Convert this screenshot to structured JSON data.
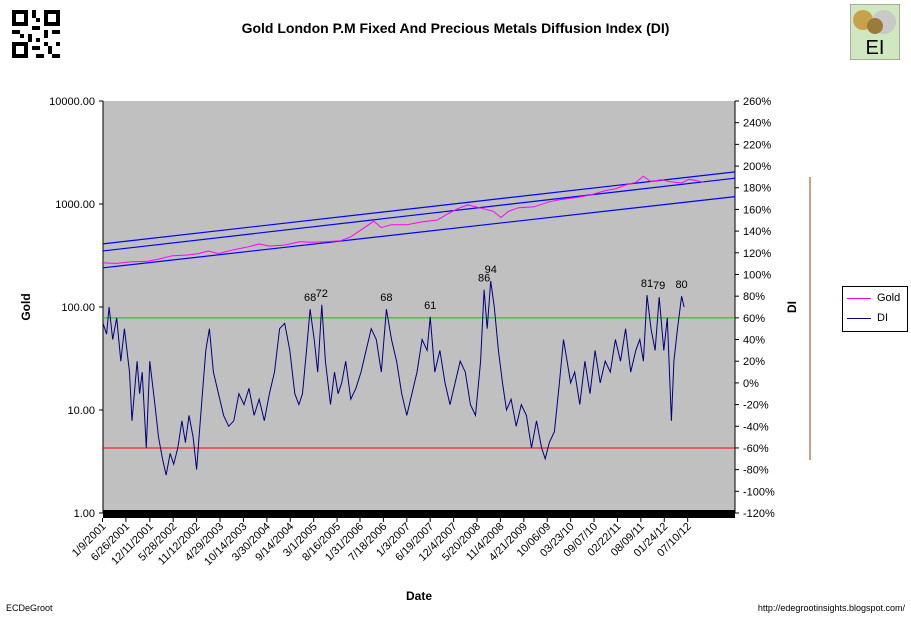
{
  "chart_data": {
    "type": "line",
    "title": "Gold London P.M Fixed And Precious Metals Diffusion Index (DI)",
    "xlabel": "Date",
    "ylabel_left": "Gold",
    "ylabel_right": "DI",
    "y_left_scale": "log",
    "y_left_range": [
      1,
      10000
    ],
    "y_left_ticks": [
      "10000.00",
      "1000.00",
      "100.00",
      "10.00",
      "1.00"
    ],
    "y_right_range": [
      -120,
      260
    ],
    "y_right_ticks": [
      "260%",
      "240%",
      "220%",
      "200%",
      "180%",
      "160%",
      "140%",
      "120%",
      "100%",
      "80%",
      "60%",
      "40%",
      "20%",
      "0%",
      "-20%",
      "-40%",
      "-60%",
      "-80%",
      "-100%",
      "-120%"
    ],
    "x_range": [
      2001.03,
      2013.45
    ],
    "x_tick_labels": [
      {
        "label": "1/9/2001",
        "t": 2001.02
      },
      {
        "label": "6/26/2001",
        "t": 2001.48
      },
      {
        "label": "12/11/2001",
        "t": 2001.95
      },
      {
        "label": "5/28/2002",
        "t": 2002.41
      },
      {
        "label": "11/12/2002",
        "t": 2002.87
      },
      {
        "label": "4/29/2003",
        "t": 2003.33
      },
      {
        "label": "10/14/2003",
        "t": 2003.79
      },
      {
        "label": "3/30/2004",
        "t": 2004.25
      },
      {
        "label": "9/14/2004",
        "t": 2004.71
      },
      {
        "label": "3/1/2005",
        "t": 2005.17
      },
      {
        "label": "8/16/2005",
        "t": 2005.63
      },
      {
        "label": "1/31/2006",
        "t": 2006.08
      },
      {
        "label": "7/18/2006",
        "t": 2006.54
      },
      {
        "label": "1/3/2007",
        "t": 2007.0
      },
      {
        "label": "6/19/2007",
        "t": 2007.46
      },
      {
        "label": "12/4/2007",
        "t": 2007.92
      },
      {
        "label": "5/20/2008",
        "t": 2008.38
      },
      {
        "label": "11/4/2008",
        "t": 2008.84
      },
      {
        "label": "4/21/2009",
        "t": 2009.3
      },
      {
        "label": "10/06/09",
        "t": 2009.76
      },
      {
        "label": "03/23/10",
        "t": 2010.22
      },
      {
        "label": "09/07/10",
        "t": 2010.68
      },
      {
        "label": "02/22/11",
        "t": 2011.14
      },
      {
        "label": "08/09/11",
        "t": 2011.6
      },
      {
        "label": "01/24/12",
        "t": 2012.06
      },
      {
        "label": "07/10/12",
        "t": 2012.52
      }
    ],
    "series": [
      {
        "name": "Gold",
        "axis": "left",
        "color": "#ff00ff",
        "points": [
          [
            2001.03,
            268
          ],
          [
            2001.3,
            265
          ],
          [
            2001.6,
            275
          ],
          [
            2001.9,
            278
          ],
          [
            2002.1,
            290
          ],
          [
            2002.4,
            315
          ],
          [
            2002.7,
            320
          ],
          [
            2002.9,
            330
          ],
          [
            2003.1,
            350
          ],
          [
            2003.3,
            330
          ],
          [
            2003.6,
            360
          ],
          [
            2003.9,
            385
          ],
          [
            2004.1,
            410
          ],
          [
            2004.3,
            390
          ],
          [
            2004.6,
            400
          ],
          [
            2004.9,
            430
          ],
          [
            2005.1,
            425
          ],
          [
            2005.4,
            430
          ],
          [
            2005.7,
            440
          ],
          [
            2005.9,
            480
          ],
          [
            2006.1,
            560
          ],
          [
            2006.35,
            680
          ],
          [
            2006.5,
            590
          ],
          [
            2006.7,
            630
          ],
          [
            2007.0,
            630
          ],
          [
            2007.3,
            670
          ],
          [
            2007.6,
            700
          ],
          [
            2007.8,
            800
          ],
          [
            2008.0,
            900
          ],
          [
            2008.2,
            980
          ],
          [
            2008.5,
            900
          ],
          [
            2008.7,
            850
          ],
          [
            2008.85,
            740
          ],
          [
            2009.0,
            850
          ],
          [
            2009.2,
            920
          ],
          [
            2009.5,
            940
          ],
          [
            2009.8,
            1050
          ],
          [
            2010.0,
            1100
          ],
          [
            2010.3,
            1150
          ],
          [
            2010.6,
            1220
          ],
          [
            2010.9,
            1350
          ],
          [
            2011.1,
            1400
          ],
          [
            2011.3,
            1530
          ],
          [
            2011.5,
            1620
          ],
          [
            2011.65,
            1860
          ],
          [
            2011.8,
            1650
          ],
          [
            2012.0,
            1720
          ],
          [
            2012.2,
            1640
          ],
          [
            2012.4,
            1600
          ],
          [
            2012.55,
            1740
          ],
          [
            2012.7,
            1680
          ],
          [
            2012.85,
            1620
          ]
        ]
      },
      {
        "name": "DI",
        "axis": "right",
        "color": "#000080",
        "points": [
          [
            2001.03,
            55
          ],
          [
            2001.1,
            45
          ],
          [
            2001.15,
            70
          ],
          [
            2001.22,
            40
          ],
          [
            2001.3,
            60
          ],
          [
            2001.38,
            20
          ],
          [
            2001.45,
            50
          ],
          [
            2001.55,
            10
          ],
          [
            2001.6,
            -35
          ],
          [
            2001.7,
            20
          ],
          [
            2001.75,
            -10
          ],
          [
            2001.8,
            10
          ],
          [
            2001.88,
            -60
          ],
          [
            2001.95,
            20
          ],
          [
            2002.05,
            -20
          ],
          [
            2002.12,
            -50
          ],
          [
            2002.2,
            -70
          ],
          [
            2002.27,
            -85
          ],
          [
            2002.35,
            -65
          ],
          [
            2002.42,
            -75
          ],
          [
            2002.5,
            -60
          ],
          [
            2002.58,
            -35
          ],
          [
            2002.65,
            -55
          ],
          [
            2002.72,
            -30
          ],
          [
            2002.8,
            -50
          ],
          [
            2002.87,
            -80
          ],
          [
            2002.95,
            -30
          ],
          [
            2003.05,
            30
          ],
          [
            2003.12,
            50
          ],
          [
            2003.2,
            10
          ],
          [
            2003.3,
            -10
          ],
          [
            2003.4,
            -30
          ],
          [
            2003.5,
            -40
          ],
          [
            2003.6,
            -35
          ],
          [
            2003.7,
            -10
          ],
          [
            2003.8,
            -20
          ],
          [
            2003.9,
            -5
          ],
          [
            2004.0,
            -30
          ],
          [
            2004.1,
            -15
          ],
          [
            2004.2,
            -35
          ],
          [
            2004.3,
            -10
          ],
          [
            2004.4,
            10
          ],
          [
            2004.5,
            50
          ],
          [
            2004.6,
            55
          ],
          [
            2004.7,
            30
          ],
          [
            2004.8,
            -10
          ],
          [
            2004.88,
            -20
          ],
          [
            2004.95,
            -10
          ],
          [
            2005.03,
            30
          ],
          [
            2005.1,
            68
          ],
          [
            2005.18,
            40
          ],
          [
            2005.25,
            10
          ],
          [
            2005.33,
            72
          ],
          [
            2005.4,
            20
          ],
          [
            2005.5,
            -20
          ],
          [
            2005.58,
            10
          ],
          [
            2005.65,
            -10
          ],
          [
            2005.72,
            0
          ],
          [
            2005.8,
            20
          ],
          [
            2005.9,
            -15
          ],
          [
            2006.0,
            -5
          ],
          [
            2006.1,
            10
          ],
          [
            2006.2,
            30
          ],
          [
            2006.3,
            50
          ],
          [
            2006.4,
            40
          ],
          [
            2006.5,
            10
          ],
          [
            2006.6,
            68
          ],
          [
            2006.7,
            40
          ],
          [
            2006.8,
            20
          ],
          [
            2006.9,
            -10
          ],
          [
            2007.0,
            -30
          ],
          [
            2007.1,
            -10
          ],
          [
            2007.2,
            10
          ],
          [
            2007.3,
            40
          ],
          [
            2007.4,
            30
          ],
          [
            2007.46,
            61
          ],
          [
            2007.55,
            10
          ],
          [
            2007.65,
            30
          ],
          [
            2007.75,
            0
          ],
          [
            2007.85,
            -20
          ],
          [
            2007.95,
            0
          ],
          [
            2008.05,
            20
          ],
          [
            2008.15,
            10
          ],
          [
            2008.25,
            -20
          ],
          [
            2008.35,
            -30
          ],
          [
            2008.45,
            20
          ],
          [
            2008.52,
            86
          ],
          [
            2008.58,
            50
          ],
          [
            2008.65,
            94
          ],
          [
            2008.72,
            70
          ],
          [
            2008.8,
            30
          ],
          [
            2008.88,
            0
          ],
          [
            2008.96,
            -25
          ],
          [
            2009.05,
            -15
          ],
          [
            2009.15,
            -40
          ],
          [
            2009.25,
            -20
          ],
          [
            2009.35,
            -30
          ],
          [
            2009.45,
            -60
          ],
          [
            2009.55,
            -35
          ],
          [
            2009.65,
            -60
          ],
          [
            2009.72,
            -70
          ],
          [
            2009.8,
            -55
          ],
          [
            2009.9,
            -45
          ],
          [
            2010.0,
            0
          ],
          [
            2010.08,
            40
          ],
          [
            2010.15,
            20
          ],
          [
            2010.22,
            0
          ],
          [
            2010.3,
            10
          ],
          [
            2010.4,
            -20
          ],
          [
            2010.5,
            20
          ],
          [
            2010.6,
            -10
          ],
          [
            2010.7,
            30
          ],
          [
            2010.8,
            0
          ],
          [
            2010.9,
            20
          ],
          [
            2011.0,
            10
          ],
          [
            2011.1,
            40
          ],
          [
            2011.2,
            20
          ],
          [
            2011.3,
            50
          ],
          [
            2011.4,
            10
          ],
          [
            2011.5,
            30
          ],
          [
            2011.58,
            40
          ],
          [
            2011.65,
            20
          ],
          [
            2011.72,
            81
          ],
          [
            2011.8,
            50
          ],
          [
            2011.88,
            30
          ],
          [
            2011.96,
            79
          ],
          [
            2012.05,
            30
          ],
          [
            2012.12,
            60
          ],
          [
            2012.2,
            -35
          ],
          [
            2012.25,
            20
          ],
          [
            2012.32,
            50
          ],
          [
            2012.4,
            80
          ],
          [
            2012.45,
            70
          ]
        ]
      }
    ],
    "channel_lines": [
      {
        "from": [
          2001.03,
          410
        ],
        "to": [
          2013.45,
          2050
        ]
      },
      {
        "from": [
          2001.03,
          350
        ],
        "to": [
          2013.45,
          1780
        ]
      },
      {
        "from": [
          2001.03,
          240
        ],
        "to": [
          2013.45,
          1180
        ]
      }
    ],
    "reference_lines": [
      {
        "axis": "right",
        "value": 60,
        "color": "#00cc00"
      },
      {
        "axis": "right",
        "value": -60,
        "color": "#ff0000"
      }
    ],
    "annotations": [
      {
        "text": "68",
        "t": 2005.1,
        "di": 68
      },
      {
        "text": "72",
        "t": 2005.33,
        "di": 72
      },
      {
        "text": "68",
        "t": 2006.6,
        "di": 68
      },
      {
        "text": "61",
        "t": 2007.46,
        "di": 61
      },
      {
        "text": "86",
        "t": 2008.52,
        "di": 86
      },
      {
        "text": "94",
        "t": 2008.65,
        "di": 94
      },
      {
        "text": "81",
        "t": 2011.72,
        "di": 81
      },
      {
        "text": "79",
        "t": 2011.96,
        "di": 79
      },
      {
        "text": "80",
        "t": 2012.4,
        "di": 80
      }
    ],
    "legend": [
      "Gold",
      "DI"
    ],
    "legend_position": "right"
  },
  "footer": {
    "left": "ECDeGroot",
    "right": "http://edegrootinsights.blogspot.com/"
  },
  "logo": {
    "text": "EI"
  }
}
